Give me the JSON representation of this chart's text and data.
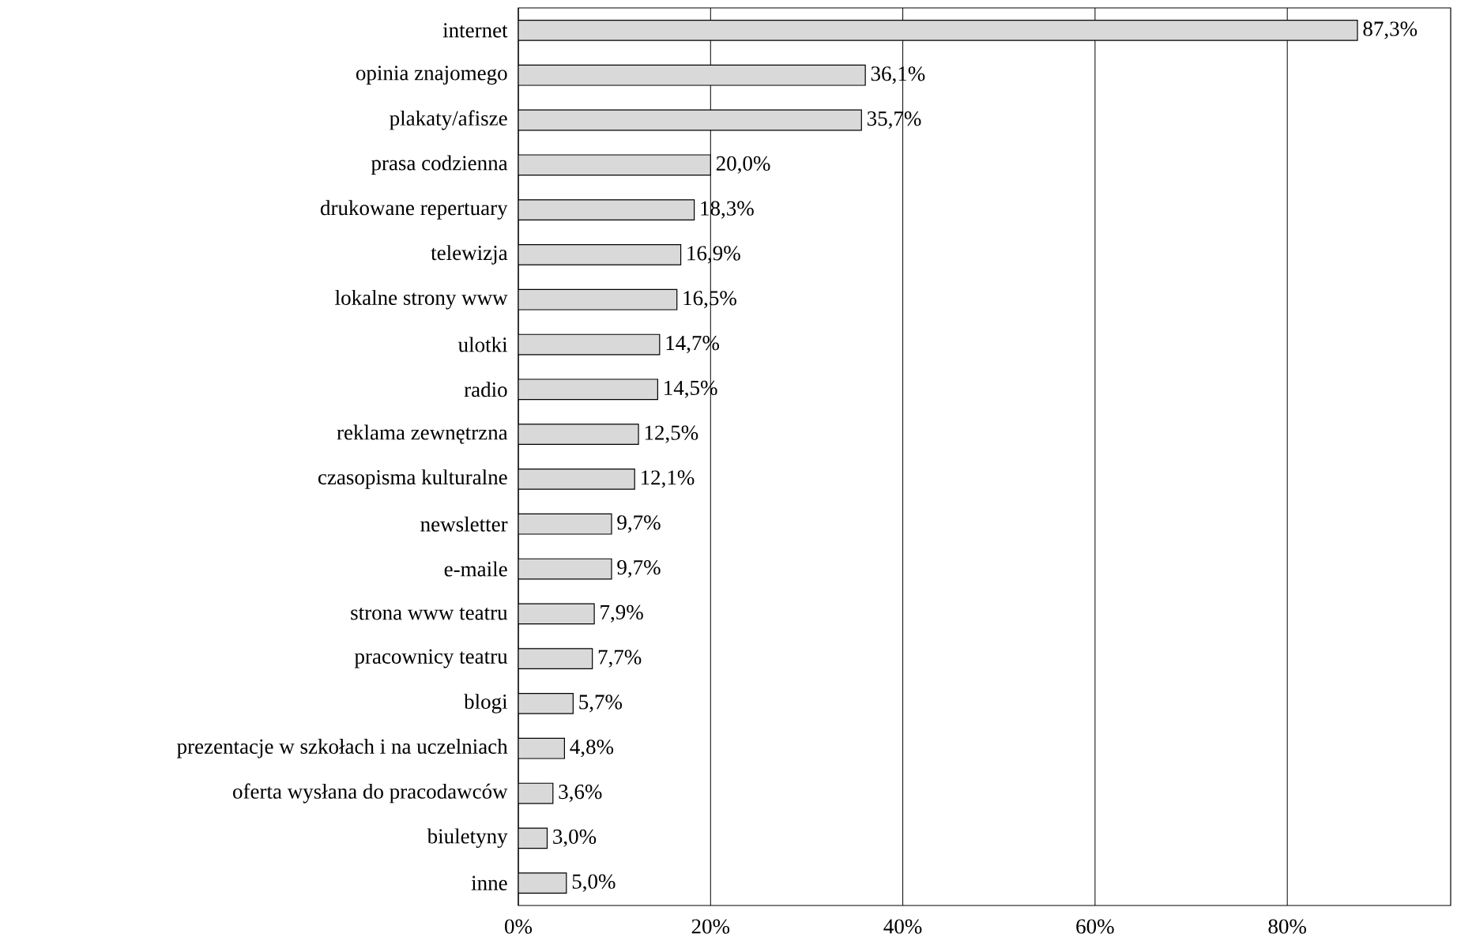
{
  "chart_data": {
    "type": "bar",
    "orientation": "horizontal",
    "categories": [
      "internet",
      "opinia znajomego",
      "plakaty/afisze",
      "prasa codzienna",
      "drukowane repertuary",
      "telewizja",
      "lokalne strony www",
      "ulotki",
      "radio",
      "reklama zewnętrzna",
      "czasopisma kulturalne",
      "newsletter",
      "e-maile",
      "strona www teatru",
      "pracownicy teatru",
      "blogi",
      "prezentacje w szkołach i na uczelniach",
      "oferta wysłana do pracodawców",
      "biuletyny",
      "inne"
    ],
    "values": [
      87.3,
      36.1,
      35.7,
      20.0,
      18.3,
      16.9,
      16.5,
      14.7,
      14.5,
      12.5,
      12.1,
      9.7,
      9.7,
      7.9,
      7.7,
      5.7,
      4.8,
      3.6,
      3.0,
      5.0
    ],
    "value_labels": [
      "87,3%",
      "36,1%",
      "35,7%",
      "20,0%",
      "18,3%",
      "16,9%",
      "16,5%",
      "14,7%",
      "14,5%",
      "12,5%",
      "12,1%",
      "9,7%",
      "9,7%",
      "7,9%",
      "7,7%",
      "5,7%",
      "4,8%",
      "3,6%",
      "3,0%",
      "5,0%"
    ],
    "color": "#d9d9d9",
    "xlim": [
      0,
      97
    ],
    "xticks": [
      {
        "value": 0,
        "label": "0%"
      },
      {
        "value": 20,
        "label": "20%"
      },
      {
        "value": 40,
        "label": "40%"
      },
      {
        "value": 60,
        "label": "60%"
      },
      {
        "value": 80,
        "label": "80%"
      }
    ],
    "grid": "x"
  }
}
